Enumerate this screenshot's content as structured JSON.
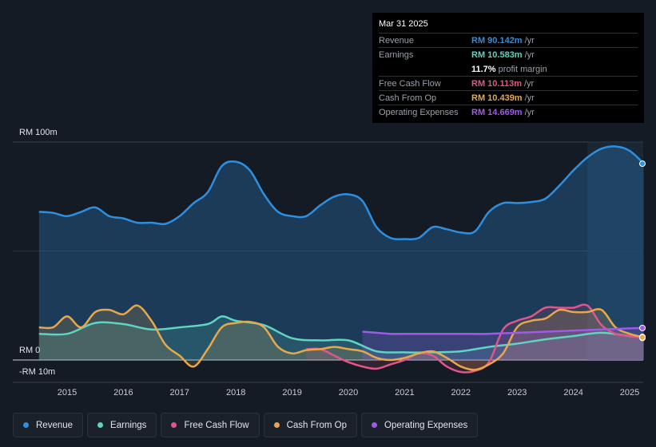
{
  "tooltip": {
    "date": "Mar 31 2025",
    "rows": [
      {
        "label": "Revenue",
        "value": "RM 90.142m",
        "unit": "/yr",
        "color": "#2e8fe0"
      },
      {
        "label": "Earnings",
        "value": "RM 10.583m",
        "unit": "/yr",
        "color": "#5fd4c0"
      },
      {
        "label": "Free Cash Flow",
        "value": "RM 10.113m",
        "unit": "/yr",
        "color": "#e0568a"
      },
      {
        "label": "Cash From Op",
        "value": "RM 10.439m",
        "unit": "/yr",
        "color": "#e8a84a"
      },
      {
        "label": "Operating Expenses",
        "value": "RM 14.669m",
        "unit": "/yr",
        "color": "#a05ae6"
      }
    ],
    "margin_value": "11.7%",
    "margin_label": "profit margin"
  },
  "legend": [
    {
      "label": "Revenue",
      "color": "#2e8fe0"
    },
    {
      "label": "Earnings",
      "color": "#5fd4c0"
    },
    {
      "label": "Free Cash Flow",
      "color": "#e0568a"
    },
    {
      "label": "Cash From Op",
      "color": "#e8a84a"
    },
    {
      "label": "Operating Expenses",
      "color": "#a05ae6"
    }
  ],
  "chart_data": {
    "type": "area",
    "y_unit": "RM m",
    "ylim": [
      -10,
      100
    ],
    "y_tick_labels": [
      "RM 100m",
      "RM 0",
      "-RM 10m"
    ],
    "x_tick_labels": [
      "2015",
      "2016",
      "2017",
      "2018",
      "2019",
      "2020",
      "2021",
      "2022",
      "2023",
      "2024",
      "2025"
    ],
    "series": [
      {
        "name": "Revenue",
        "color": "#2e8fe0",
        "x": [
          2014.5,
          2014.75,
          2015.0,
          2015.25,
          2015.5,
          2015.75,
          2016.0,
          2016.25,
          2016.5,
          2016.75,
          2017.0,
          2017.25,
          2017.5,
          2017.75,
          2018.0,
          2018.25,
          2018.5,
          2018.75,
          2019.0,
          2019.25,
          2019.5,
          2019.75,
          2020.0,
          2020.25,
          2020.5,
          2020.75,
          2021.0,
          2021.25,
          2021.5,
          2021.75,
          2022.0,
          2022.25,
          2022.5,
          2022.75,
          2023.0,
          2023.25,
          2023.5,
          2023.75,
          2024.0,
          2024.25,
          2024.5,
          2024.75,
          2025.0,
          2025.25
        ],
        "values": [
          68,
          67.5,
          66,
          68,
          70,
          66,
          65,
          63,
          63,
          62.5,
          66,
          72,
          77,
          89,
          91,
          87,
          76,
          68,
          66,
          66,
          71,
          75,
          76,
          73,
          61,
          56,
          55.5,
          56,
          61,
          60,
          58.5,
          59,
          68,
          72,
          72,
          72.5,
          74,
          80,
          87,
          93,
          97,
          98,
          96,
          90.1
        ]
      },
      {
        "name": "Earnings",
        "color": "#5fd4c0",
        "x": [
          2014.5,
          2015.0,
          2015.5,
          2016.0,
          2016.5,
          2017.0,
          2017.5,
          2017.75,
          2018.0,
          2018.5,
          2019.0,
          2019.5,
          2020.0,
          2020.5,
          2021.0,
          2021.5,
          2022.0,
          2022.5,
          2023.0,
          2023.5,
          2024.0,
          2024.5,
          2025.0,
          2025.25
        ],
        "values": [
          12,
          12,
          17,
          16.5,
          14,
          15,
          16.5,
          20,
          18,
          16,
          10,
          9,
          9,
          4,
          3.5,
          3.5,
          4,
          6,
          7.5,
          9.5,
          11,
          12.5,
          11,
          10.6
        ]
      },
      {
        "name": "Free Cash Flow",
        "color": "#e0568a",
        "x": [
          2019.25,
          2019.5,
          2019.75,
          2020.0,
          2020.25,
          2020.5,
          2020.75,
          2021.0,
          2021.25,
          2021.5,
          2021.75,
          2022.0,
          2022.25,
          2022.5,
          2022.75,
          2023.0,
          2023.25,
          2023.5,
          2023.75,
          2024.0,
          2024.25,
          2024.5,
          2024.75,
          2025.0,
          2025.25
        ],
        "values": [
          5,
          5,
          2,
          -1,
          -3,
          -4,
          -2,
          0,
          3,
          2,
          -3,
          -5.5,
          -5,
          -1,
          14,
          18,
          20,
          24,
          24,
          24,
          25,
          16,
          12,
          11,
          10.1
        ]
      },
      {
        "name": "Cash From Op",
        "color": "#e8a84a",
        "x": [
          2014.5,
          2014.75,
          2015.0,
          2015.25,
          2015.5,
          2015.75,
          2016.0,
          2016.25,
          2016.5,
          2016.75,
          2017.0,
          2017.25,
          2017.5,
          2017.75,
          2018.0,
          2018.25,
          2018.5,
          2018.75,
          2019.0,
          2019.25,
          2019.5,
          2019.75,
          2020.0,
          2020.25,
          2020.5,
          2020.75,
          2021.0,
          2021.25,
          2021.5,
          2021.75,
          2022.0,
          2022.25,
          2022.5,
          2022.75,
          2023.0,
          2023.25,
          2023.5,
          2023.75,
          2024.0,
          2024.25,
          2024.5,
          2024.75,
          2025.0,
          2025.25
        ],
        "values": [
          15,
          15,
          20,
          15,
          22,
          23,
          21,
          25,
          18,
          7,
          2,
          -3,
          5,
          15,
          17,
          17.5,
          15,
          6,
          3,
          4.5,
          5,
          6,
          5,
          4,
          1,
          0,
          1,
          3,
          4,
          1,
          -3,
          -4.5,
          -2,
          3,
          15,
          18,
          19,
          23,
          22,
          22,
          23,
          15,
          12,
          10.4
        ]
      },
      {
        "name": "Operating Expenses",
        "color": "#a05ae6",
        "x": [
          2020.25,
          2020.5,
          2020.75,
          2021.0,
          2021.5,
          2022.0,
          2022.5,
          2023.0,
          2023.5,
          2024.0,
          2024.5,
          2025.0,
          2025.25
        ],
        "values": [
          13,
          12.5,
          12,
          12,
          12,
          12,
          12,
          12.5,
          13,
          13.5,
          14,
          14.5,
          14.7
        ]
      }
    ],
    "forecast_band_start": 2024.25
  }
}
